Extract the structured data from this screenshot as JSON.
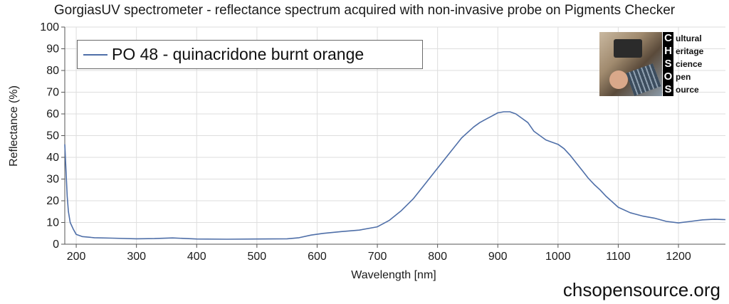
{
  "chart_data": {
    "type": "line",
    "title": "GorgiasUV spectrometer - reflectance spectrum acquired with non-invasive probe on Pigments Checker",
    "xlabel": "Wavelength [nm]",
    "ylabel": "Reflectance (%)",
    "xlim": [
      181,
      1278
    ],
    "ylim": [
      0,
      100
    ],
    "xticks": [
      200,
      300,
      400,
      500,
      600,
      700,
      800,
      900,
      1000,
      1100,
      1200
    ],
    "yticks": [
      0,
      10,
      20,
      30,
      40,
      50,
      60,
      70,
      80,
      90,
      100
    ],
    "grid": true,
    "legend_position": "top-left",
    "series": [
      {
        "name": "PO 48 - quinacridone burnt orange",
        "color": "#4f6fa8",
        "x": [
          181,
          183,
          185,
          187,
          190,
          195,
          200,
          210,
          230,
          260,
          300,
          330,
          360,
          400,
          450,
          500,
          550,
          570,
          590,
          610,
          640,
          670,
          700,
          720,
          740,
          760,
          780,
          800,
          820,
          840,
          860,
          870,
          880,
          890,
          900,
          910,
          920,
          930,
          940,
          950,
          960,
          970,
          980,
          990,
          1000,
          1010,
          1020,
          1030,
          1040,
          1050,
          1060,
          1070,
          1080,
          1090,
          1100,
          1120,
          1140,
          1160,
          1180,
          1200,
          1220,
          1240,
          1260,
          1278
        ],
        "y": [
          46,
          34,
          22,
          15,
          10,
          7,
          4.5,
          3.5,
          3,
          2.8,
          2.5,
          2.6,
          2.9,
          2.4,
          2.3,
          2.4,
          2.5,
          3,
          4.2,
          5,
          5.8,
          6.5,
          8,
          11,
          15.5,
          21,
          28,
          35,
          42,
          49,
          54,
          56,
          57.5,
          59,
          60.5,
          61,
          61,
          60,
          58,
          56,
          52,
          50,
          48,
          47,
          46,
          44,
          41,
          37.5,
          34,
          30.5,
          27.5,
          25,
          22,
          19.5,
          17,
          14.5,
          13,
          12,
          10.5,
          9.8,
          10.5,
          11.2,
          11.5,
          11.3
        ]
      }
    ]
  },
  "footer": {
    "website": "chsopensource.org"
  },
  "logo": {
    "letters": [
      "C",
      "H",
      "S",
      "O",
      "S"
    ],
    "words": [
      "ultural",
      "eritage",
      "cience",
      "pen",
      "ource"
    ]
  }
}
